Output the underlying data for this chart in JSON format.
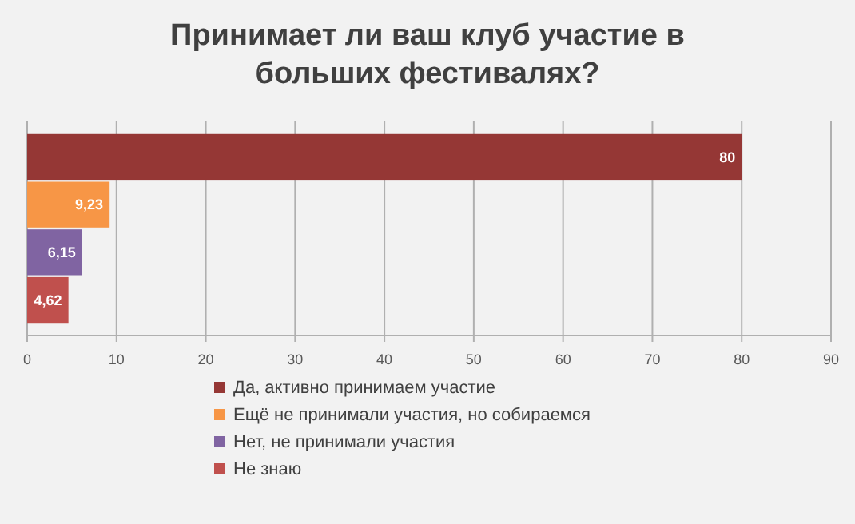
{
  "chart_data": {
    "type": "bar",
    "orientation": "horizontal",
    "title": "Принимает ли ваш клуб участие в больших фестивалях?",
    "categories": [
      null
    ],
    "series": [
      {
        "name": "Да, активно принимаем участие",
        "color": "#953735",
        "values": [
          80
        ],
        "value_labels": [
          "80"
        ]
      },
      {
        "name": "Ещё не принимали участия, но собираемся",
        "color": "#f79646",
        "values": [
          9.23
        ],
        "value_labels": [
          "9,23"
        ]
      },
      {
        "name": "Нет, не принимали участия",
        "color": "#8064a2",
        "values": [
          6.15
        ],
        "value_labels": [
          "6,15"
        ]
      },
      {
        "name": "Не знаю",
        "color": "#c0504d",
        "values": [
          4.62
        ],
        "value_labels": [
          "4,62"
        ]
      }
    ],
    "xlim": [
      0,
      90
    ],
    "xticks": [
      0,
      10,
      20,
      30,
      40,
      50,
      60,
      70,
      80,
      90
    ],
    "grid": "x",
    "legend": "bottom"
  }
}
